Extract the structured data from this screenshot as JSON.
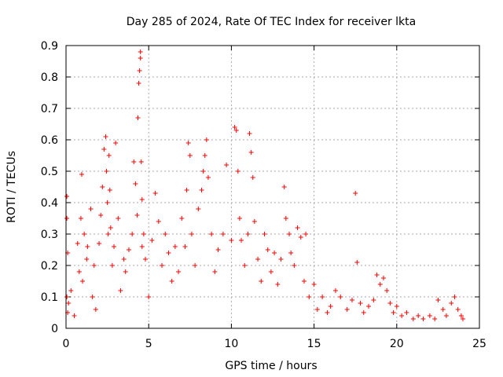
{
  "chart_data": {
    "type": "scatter",
    "title": "Day 285 of 2024, Rate Of TEC Index for receiver lkta",
    "xlabel": "GPS time / hours",
    "ylabel": "ROTI / TECUs",
    "xlim": [
      0,
      25
    ],
    "ylim": [
      0,
      0.9
    ],
    "x_ticks": [
      "0",
      "5",
      "10",
      "15",
      "20",
      "25"
    ],
    "y_ticks": [
      "0",
      "0.1",
      "0.2",
      "0.3",
      "0.4",
      "0.5",
      "0.6",
      "0.7",
      "0.8",
      "0.9"
    ],
    "grid": true,
    "marker": "+",
    "color": "#ff0000",
    "series": [
      {
        "x": [
          0.05,
          0.05,
          0.05,
          0.1,
          0.1,
          0.15,
          0.3,
          0.5,
          0.7,
          0.8,
          0.9,
          0.95,
          1.0,
          1.1,
          1.25,
          1.3,
          1.5,
          1.6,
          1.7,
          1.8,
          2.0,
          2.1,
          2.2,
          2.3,
          2.4,
          2.45,
          2.5,
          2.55,
          2.6,
          2.65,
          2.7,
          2.8,
          2.9,
          3.0,
          3.15,
          3.3,
          3.5,
          3.6,
          3.8,
          4.0,
          4.1,
          4.2,
          4.3,
          4.35,
          4.4,
          4.45,
          4.5,
          4.5,
          4.55,
          4.6,
          4.6,
          4.7,
          4.8,
          5.0,
          5.2,
          5.4,
          5.6,
          5.8,
          6.0,
          6.2,
          6.4,
          6.6,
          6.8,
          7.0,
          7.2,
          7.3,
          7.4,
          7.5,
          7.6,
          7.8,
          8.0,
          8.2,
          8.3,
          8.4,
          8.5,
          8.6,
          8.8,
          9.0,
          9.2,
          9.5,
          9.7,
          10.0,
          10.2,
          10.3,
          10.4,
          10.5,
          10.6,
          10.8,
          11.0,
          11.1,
          11.2,
          11.3,
          11.4,
          11.6,
          11.8,
          12.0,
          12.2,
          12.4,
          12.6,
          12.8,
          13.0,
          13.2,
          13.3,
          13.5,
          13.6,
          13.8,
          14.0,
          14.2,
          14.4,
          14.5,
          14.7,
          15.0,
          15.2,
          15.5,
          15.8,
          16.0,
          16.3,
          16.6,
          17.0,
          17.3,
          17.5,
          17.6,
          17.8,
          18.0,
          18.3,
          18.6,
          18.8,
          19.0,
          19.2,
          19.4,
          19.6,
          19.8,
          20.0,
          20.3,
          20.6,
          21.0,
          21.3,
          21.6,
          22.0,
          22.3,
          22.5,
          22.8,
          23.0,
          23.3,
          23.5,
          23.7,
          23.9,
          24.0
        ],
        "y": [
          0.42,
          0.35,
          0.1,
          0.24,
          0.05,
          0.08,
          0.12,
          0.04,
          0.27,
          0.18,
          0.35,
          0.49,
          0.15,
          0.3,
          0.22,
          0.26,
          0.38,
          0.1,
          0.2,
          0.06,
          0.27,
          0.36,
          0.45,
          0.57,
          0.61,
          0.5,
          0.4,
          0.3,
          0.55,
          0.44,
          0.32,
          0.2,
          0.26,
          0.59,
          0.35,
          0.12,
          0.22,
          0.18,
          0.25,
          0.3,
          0.53,
          0.46,
          0.36,
          0.67,
          0.78,
          0.82,
          0.88,
          0.86,
          0.53,
          0.41,
          0.26,
          0.3,
          0.22,
          0.1,
          0.28,
          0.43,
          0.34,
          0.2,
          0.3,
          0.24,
          0.15,
          0.26,
          0.18,
          0.35,
          0.26,
          0.44,
          0.59,
          0.55,
          0.3,
          0.2,
          0.38,
          0.44,
          0.5,
          0.55,
          0.6,
          0.48,
          0.3,
          0.18,
          0.25,
          0.3,
          0.52,
          0.28,
          0.64,
          0.63,
          0.5,
          0.35,
          0.28,
          0.2,
          0.3,
          0.62,
          0.56,
          0.48,
          0.34,
          0.22,
          0.15,
          0.3,
          0.25,
          0.18,
          0.24,
          0.14,
          0.22,
          0.45,
          0.35,
          0.3,
          0.24,
          0.2,
          0.32,
          0.29,
          0.15,
          0.3,
          0.1,
          0.14,
          0.06,
          0.1,
          0.05,
          0.07,
          0.12,
          0.1,
          0.06,
          0.09,
          0.43,
          0.21,
          0.08,
          0.05,
          0.07,
          0.09,
          0.17,
          0.14,
          0.16,
          0.12,
          0.08,
          0.05,
          0.07,
          0.04,
          0.05,
          0.03,
          0.04,
          0.03,
          0.04,
          0.03,
          0.09,
          0.06,
          0.04,
          0.08,
          0.1,
          0.06,
          0.04,
          0.03
        ]
      }
    ]
  }
}
